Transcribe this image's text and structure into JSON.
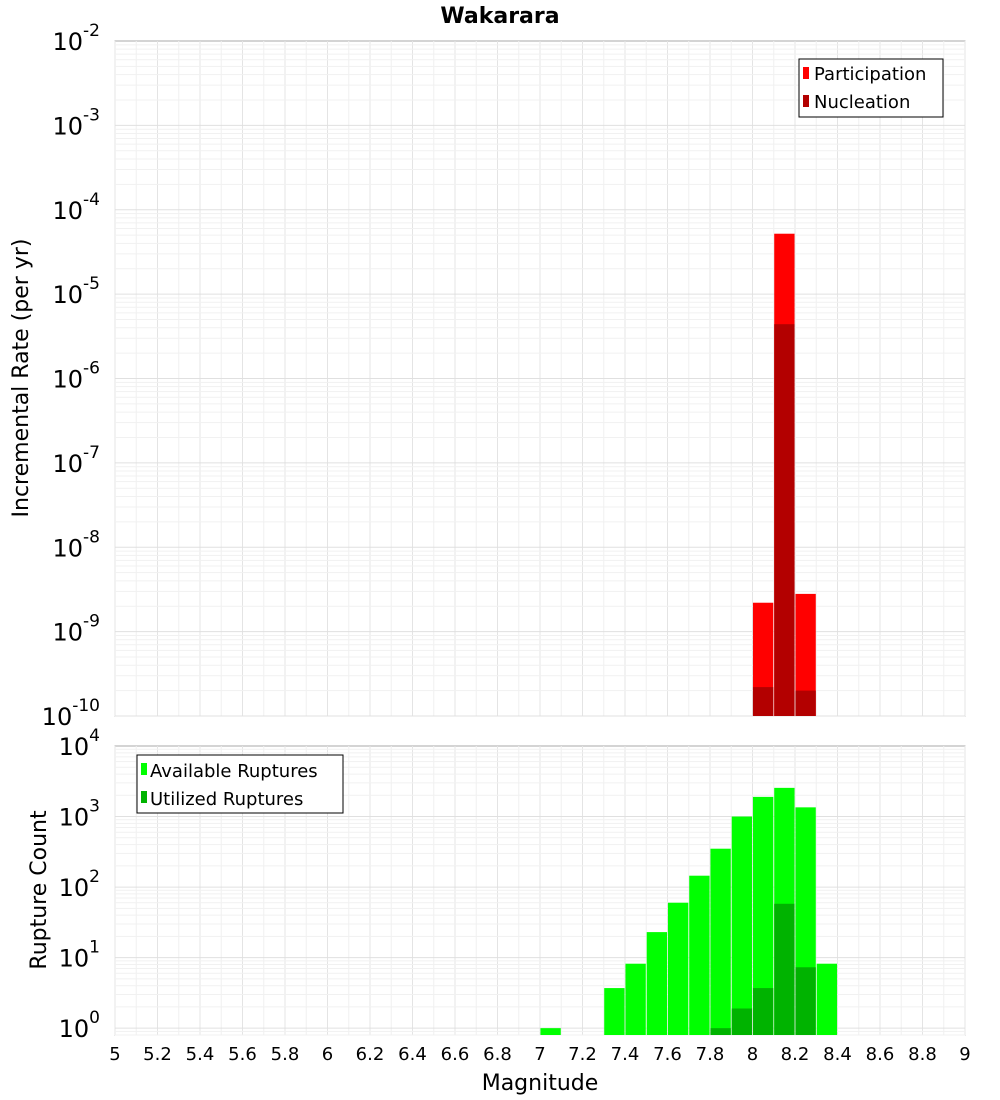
{
  "chart_data": [
    {
      "type": "bar",
      "title": "Wakarara",
      "xlabel": "",
      "ylabel": "Incremental Rate (per yr)",
      "yscale": "log",
      "ylim_exponents": [
        -10,
        -2
      ],
      "ylim": [
        1e-10,
        0.01
      ],
      "xlim": [
        5,
        9
      ],
      "grid": true,
      "legend_position": "top-right",
      "series": [
        {
          "name": "Participation",
          "color": "#ff0000",
          "bins": [
            {
              "x": 8.05,
              "value": 2.2e-09
            },
            {
              "x": 8.15,
              "value": 5.2e-05
            },
            {
              "x": 8.25,
              "value": 2.8e-09
            }
          ]
        },
        {
          "name": "Nucleation",
          "color": "#b30000",
          "bins": [
            {
              "x": 8.05,
              "value": 2.2e-10
            },
            {
              "x": 8.15,
              "value": 4.4e-06
            },
            {
              "x": 8.25,
              "value": 2e-10
            }
          ]
        }
      ]
    },
    {
      "type": "bar",
      "title": "",
      "xlabel": "Magnitude",
      "ylabel": "Rupture Count",
      "yscale": "log",
      "ylim_exponents": [
        0,
        4
      ],
      "ylim": [
        0.8,
        10000
      ],
      "xlim": [
        5,
        9
      ],
      "xticks": [
        "5",
        "5.2",
        "5.4",
        "5.6",
        "5.8",
        "6",
        "6.2",
        "6.4",
        "6.6",
        "6.8",
        "7",
        "7.2",
        "7.4",
        "7.6",
        "7.8",
        "8",
        "8.2",
        "8.4",
        "8.6",
        "8.8",
        "9"
      ],
      "grid": true,
      "legend_position": "top-left",
      "series": [
        {
          "name": "Available Ruptures",
          "color": "#00ff00",
          "bins": [
            {
              "x": 7.05,
              "value": 1
            },
            {
              "x": 7.35,
              "value": 3.7
            },
            {
              "x": 7.45,
              "value": 8.2
            },
            {
              "x": 7.55,
              "value": 23
            },
            {
              "x": 7.65,
              "value": 60
            },
            {
              "x": 7.75,
              "value": 145
            },
            {
              "x": 7.85,
              "value": 350
            },
            {
              "x": 7.95,
              "value": 1000
            },
            {
              "x": 8.05,
              "value": 1900
            },
            {
              "x": 8.15,
              "value": 2550
            },
            {
              "x": 8.25,
              "value": 1350
            },
            {
              "x": 8.35,
              "value": 8.2
            }
          ]
        },
        {
          "name": "Utilized Ruptures",
          "color": "#00b300",
          "bins": [
            {
              "x": 7.85,
              "value": 1
            },
            {
              "x": 7.95,
              "value": 1.9
            },
            {
              "x": 8.05,
              "value": 3.7
            },
            {
              "x": 8.15,
              "value": 58
            },
            {
              "x": 8.25,
              "value": 7.3
            }
          ]
        }
      ]
    }
  ]
}
